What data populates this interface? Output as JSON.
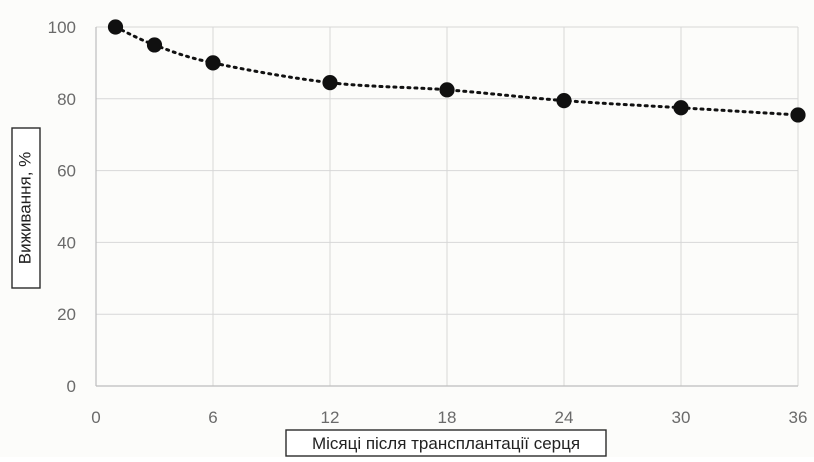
{
  "chart_data": {
    "type": "scatter",
    "xlabel": "Місяці після трансплантації серця",
    "ylabel": "Виживання, %",
    "xlim": [
      0,
      36
    ],
    "ylim": [
      0,
      100
    ],
    "x_ticks": [
      0,
      6,
      12,
      18,
      24,
      30,
      36
    ],
    "y_ticks": [
      0,
      20,
      40,
      60,
      80,
      100
    ],
    "grid": true,
    "trendline": "dotted",
    "series": [
      {
        "x": [
          1,
          3,
          6,
          12,
          18,
          24,
          30,
          36
        ],
        "values": [
          100,
          95,
          90,
          84.5,
          82.5,
          79.5,
          77.5,
          75.5
        ]
      }
    ],
    "colors": {
      "point": "#101010",
      "trendline": "#111111",
      "grid": "#d7d7d7",
      "axis": "#bdbdbd"
    }
  }
}
